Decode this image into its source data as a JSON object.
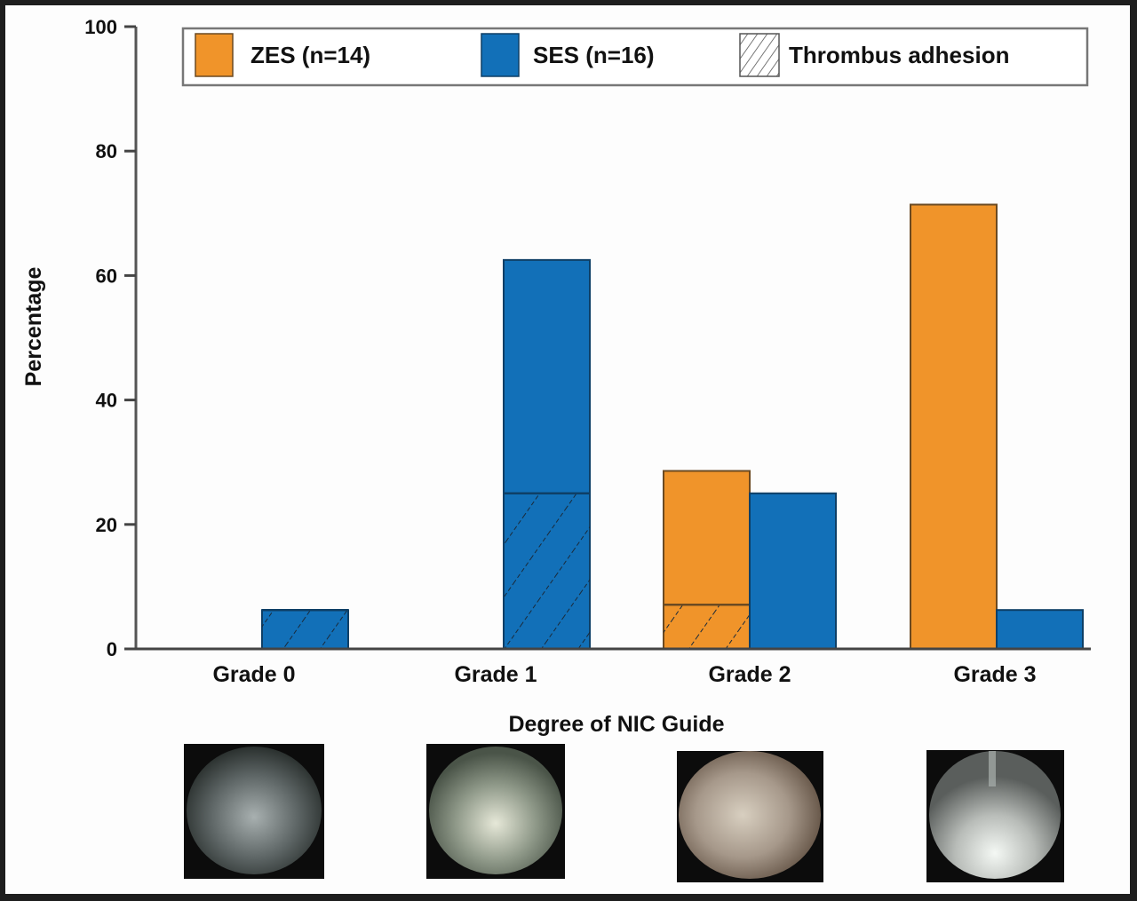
{
  "chart_data": {
    "type": "bar",
    "title": "",
    "xlabel": "Degree of NIC Guide",
    "ylabel": "Percentage",
    "ylim": [
      0,
      100
    ],
    "yticks": [
      "0",
      "20",
      "40",
      "60",
      "80",
      "100"
    ],
    "grid": false,
    "legend_position": "top",
    "categories": [
      "Grade 0",
      "Grade 1",
      "Grade 2",
      "Grade 3"
    ],
    "series": [
      {
        "name": "ZES (n=14)",
        "color": "#f0942a",
        "values": [
          0,
          0,
          28.6,
          71.4
        ],
        "thrombus_adhesion": [
          0,
          0,
          7.1,
          0
        ]
      },
      {
        "name": "SES (n=16)",
        "color": "#1270b8",
        "values": [
          6.25,
          62.5,
          25,
          6.25
        ],
        "thrombus_adhesion": [
          6.25,
          25,
          0,
          0
        ]
      }
    ],
    "legend": [
      "ZES (n=14)",
      "SES (n=16)",
      "Thrombus adhesion"
    ],
    "images": [
      "Grade 0 angioscopic image",
      "Grade 1 angioscopic image",
      "Grade 2 angioscopic image",
      "Grade 3 angioscopic image"
    ]
  }
}
